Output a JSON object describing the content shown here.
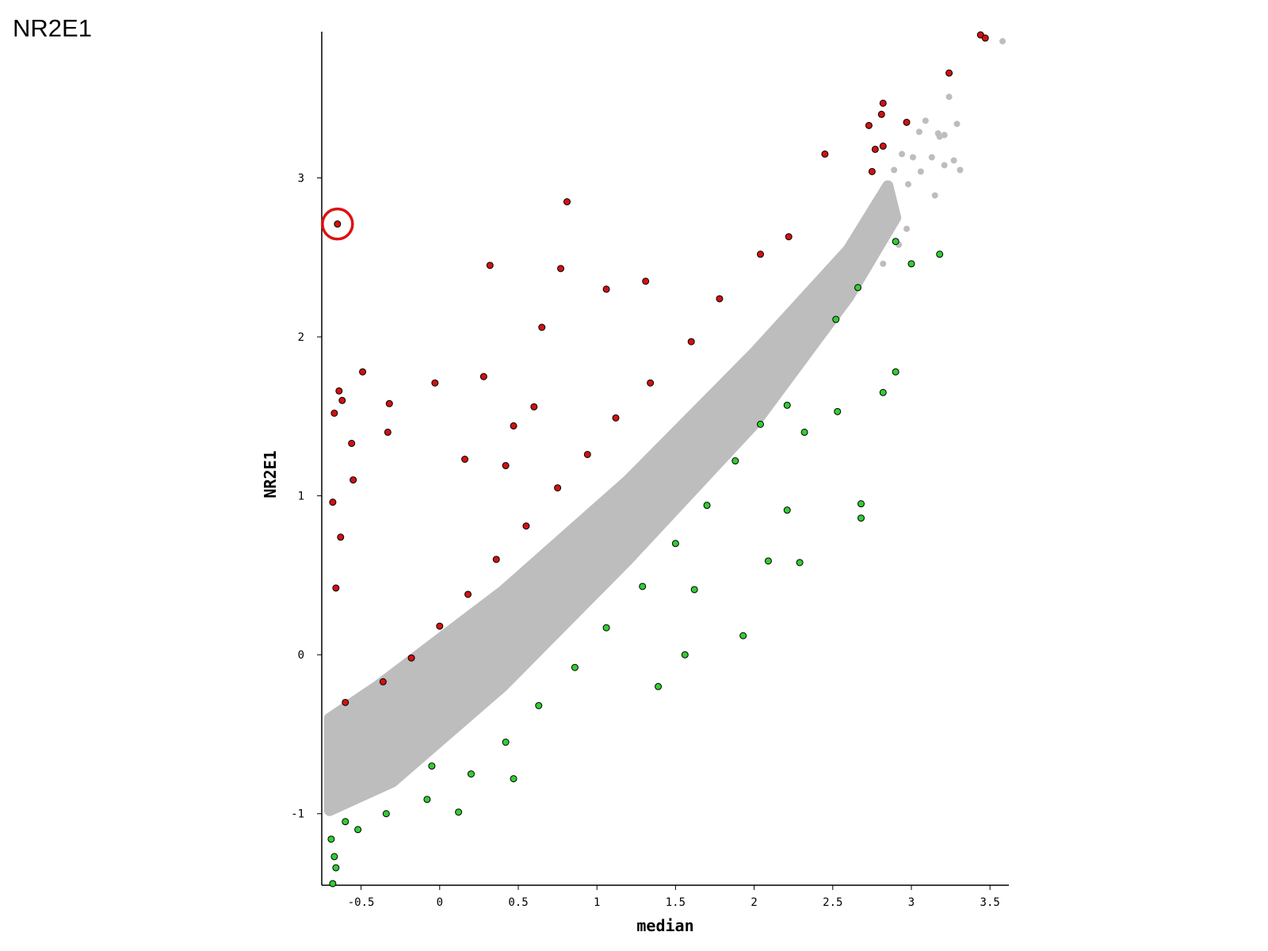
{
  "slide_title": "NR2E1",
  "chart_data": {
    "type": "scatter",
    "title": "",
    "xlabel": "median",
    "ylabel": "NR2E1",
    "xlim": [
      -0.75,
      3.62
    ],
    "ylim": [
      -1.45,
      3.92
    ],
    "x_ticks": [
      {
        "value": -0.5,
        "label": "-0.5"
      },
      {
        "value": 0,
        "label": "0"
      },
      {
        "value": 0.5,
        "label": "0.5"
      },
      {
        "value": 1,
        "label": "1"
      },
      {
        "value": 1.5,
        "label": "1.5"
      },
      {
        "value": 2,
        "label": "2"
      },
      {
        "value": 2.5,
        "label": "2.5"
      },
      {
        "value": 3,
        "label": "3"
      },
      {
        "value": 3.5,
        "label": "3.5"
      }
    ],
    "y_ticks": [
      {
        "value": -1,
        "label": "-1"
      },
      {
        "value": 0,
        "label": "0"
      },
      {
        "value": 1,
        "label": "1"
      },
      {
        "value": 2,
        "label": "2"
      },
      {
        "value": 3,
        "label": "3"
      }
    ],
    "grid": false,
    "legend": "none",
    "colors": {
      "up": "#d11111",
      "down": "#33cc33",
      "neutral": "#bdbdbd",
      "outline": "#000000",
      "highlight_circle": "#dd1111"
    },
    "highlight": {
      "x": -0.65,
      "y": 2.71
    },
    "series": [
      {
        "color_key": "neutral",
        "values": [
          [
            3.58,
            3.86
          ],
          [
            3.24,
            3.51
          ],
          [
            3.29,
            3.34
          ],
          [
            3.21,
            3.27
          ],
          [
            3.18,
            3.26
          ],
          [
            3.31,
            3.05
          ],
          [
            3.27,
            3.11
          ],
          [
            3.09,
            3.36
          ],
          [
            3.13,
            3.13
          ],
          [
            3.17,
            3.28
          ],
          [
            3.05,
            3.29
          ],
          [
            3.01,
            3.13
          ],
          [
            3.15,
            2.89
          ],
          [
            2.94,
            3.15
          ],
          [
            2.89,
            3.05
          ],
          [
            2.98,
            2.96
          ],
          [
            3.06,
            3.04
          ],
          [
            2.86,
            2.79
          ],
          [
            2.97,
            2.68
          ],
          [
            2.63,
            2.35
          ],
          [
            2.66,
            2.61
          ],
          [
            2.77,
            2.53
          ],
          [
            2.82,
            2.46
          ],
          [
            2.9,
            2.79
          ],
          [
            2.7,
            2.71
          ],
          [
            2.55,
            2.43
          ],
          [
            3.21,
            3.08
          ],
          [
            2.92,
            2.58
          ],
          [
            2.45,
            2.3
          ],
          [
            2.6,
            2.52
          ]
        ]
      },
      {
        "color_key": "up",
        "values": [
          [
            3.44,
            3.9
          ],
          [
            3.47,
            3.88
          ],
          [
            3.24,
            3.66
          ],
          [
            2.82,
            3.47
          ],
          [
            2.81,
            3.4
          ],
          [
            2.97,
            3.35
          ],
          [
            2.73,
            3.33
          ],
          [
            2.82,
            3.2
          ],
          [
            2.77,
            3.18
          ],
          [
            2.45,
            3.15
          ],
          [
            2.75,
            3.04
          ],
          [
            0.81,
            2.85
          ],
          [
            -0.65,
            2.71
          ],
          [
            0.32,
            2.45
          ],
          [
            0.77,
            2.43
          ],
          [
            1.06,
            2.3
          ],
          [
            1.31,
            2.35
          ],
          [
            -0.49,
            1.78
          ],
          [
            -0.64,
            1.66
          ],
          [
            -0.62,
            1.6
          ],
          [
            -0.67,
            1.52
          ],
          [
            -0.32,
            1.58
          ],
          [
            -0.03,
            1.71
          ],
          [
            0.28,
            1.75
          ],
          [
            -0.56,
            1.33
          ],
          [
            0.16,
            1.23
          ],
          [
            0.47,
            1.44
          ],
          [
            0.6,
            1.56
          ],
          [
            0.65,
            2.06
          ],
          [
            -0.68,
            0.96
          ],
          [
            -0.55,
            1.1
          ],
          [
            -0.33,
            1.4
          ],
          [
            0.42,
            1.19
          ],
          [
            2.22,
            2.63
          ],
          [
            2.04,
            2.52
          ],
          [
            1.78,
            2.24
          ],
          [
            1.6,
            1.97
          ],
          [
            1.34,
            1.71
          ],
          [
            1.12,
            1.49
          ],
          [
            0.94,
            1.26
          ],
          [
            0.75,
            1.05
          ],
          [
            0.55,
            0.81
          ],
          [
            0.36,
            0.6
          ],
          [
            0.18,
            0.38
          ],
          [
            0.0,
            0.18
          ],
          [
            -0.18,
            -0.02
          ],
          [
            -0.36,
            -0.17
          ],
          [
            -0.6,
            -0.3
          ],
          [
            -0.66,
            0.42
          ],
          [
            -0.63,
            0.74
          ]
        ]
      },
      {
        "color_key": "down",
        "values": [
          [
            3.18,
            2.52
          ],
          [
            3.0,
            2.46
          ],
          [
            2.9,
            2.6
          ],
          [
            2.66,
            2.31
          ],
          [
            2.52,
            2.11
          ],
          [
            2.9,
            1.78
          ],
          [
            2.82,
            1.65
          ],
          [
            2.53,
            1.53
          ],
          [
            2.21,
            1.57
          ],
          [
            2.21,
            0.91
          ],
          [
            2.68,
            0.95
          ],
          [
            2.68,
            0.86
          ],
          [
            2.29,
            0.58
          ],
          [
            2.09,
            0.59
          ],
          [
            1.93,
            0.12
          ],
          [
            1.56,
            0.0
          ],
          [
            1.39,
            -0.2
          ],
          [
            0.47,
            -0.78
          ],
          [
            0.12,
            -0.99
          ],
          [
            -0.05,
            -0.7
          ],
          [
            -0.66,
            -1.34
          ],
          [
            -0.67,
            -1.27
          ],
          [
            -0.68,
            -1.44
          ],
          [
            -0.69,
            -1.16
          ],
          [
            -0.6,
            -1.05
          ],
          [
            2.04,
            1.45
          ],
          [
            1.88,
            1.22
          ],
          [
            1.7,
            0.94
          ],
          [
            1.5,
            0.7
          ],
          [
            1.29,
            0.43
          ],
          [
            1.06,
            0.17
          ],
          [
            0.86,
            -0.08
          ],
          [
            0.63,
            -0.32
          ],
          [
            0.42,
            -0.55
          ],
          [
            0.2,
            -0.75
          ],
          [
            -0.08,
            -0.91
          ],
          [
            -0.34,
            -1.0
          ],
          [
            -0.52,
            -1.1
          ],
          [
            2.32,
            1.4
          ],
          [
            1.62,
            0.41
          ]
        ]
      }
    ]
  }
}
